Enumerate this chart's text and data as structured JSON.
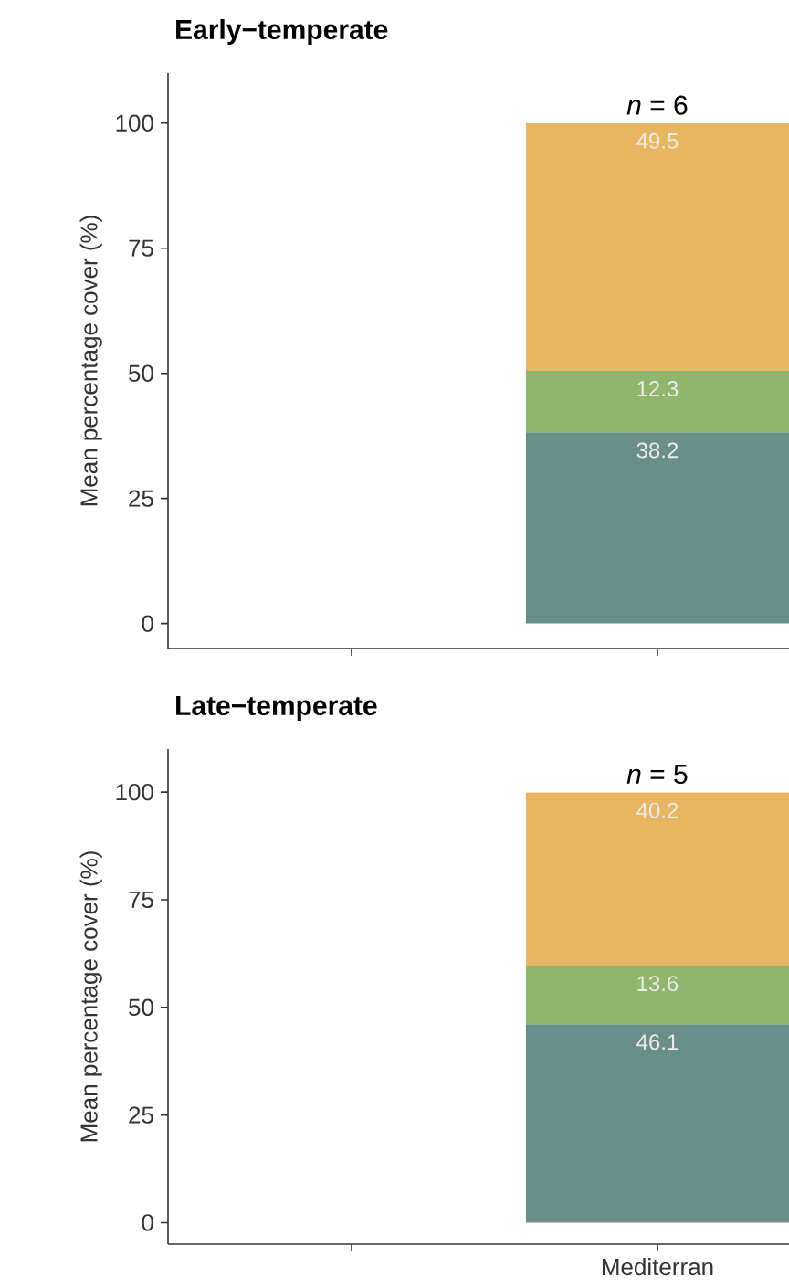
{
  "chart_data": [
    {
      "type": "bar",
      "title": "Early−temperate",
      "ylabel": "Mean percentage cover (%)",
      "categories": [
        null,
        null
      ],
      "stacked": true,
      "series": [
        {
          "color": "#6a8f88",
          "values": [
            null,
            38.2
          ]
        },
        {
          "color": "#90b56d",
          "values": [
            null,
            12.3
          ]
        },
        {
          "color": "#e8b660",
          "values": [
            null,
            49.5
          ]
        }
      ],
      "ylim": [
        -5,
        110
      ],
      "yticks": [
        0,
        25,
        50,
        75,
        100
      ],
      "data_labels": true,
      "tick_labels": "y",
      "annotations": [
        {
          "text": "*n* = 6",
          "y": 100
        }
      ]
    },
    {
      "type": "bar",
      "title": "Late−temperate",
      "ylabel": "Mean percentage cover (%)",
      "categories": [
        null,
        "Mediterran"
      ],
      "stacked": true,
      "series": [
        {
          "color": "#6a8f88",
          "values": [
            null,
            46.1
          ]
        },
        {
          "color": "#90b56d",
          "values": [
            null,
            13.6
          ]
        },
        {
          "color": "#e8b660",
          "values": [
            null,
            40.2
          ]
        }
      ],
      "ylim": [
        -5,
        110
      ],
      "yticks": [
        0,
        25,
        50,
        75,
        100
      ],
      "data_labels": true,
      "annotations": [
        {
          "text": "*n* = 5",
          "x": "Mediterran",
          "y": 100
        }
      ]
    }
  ]
}
